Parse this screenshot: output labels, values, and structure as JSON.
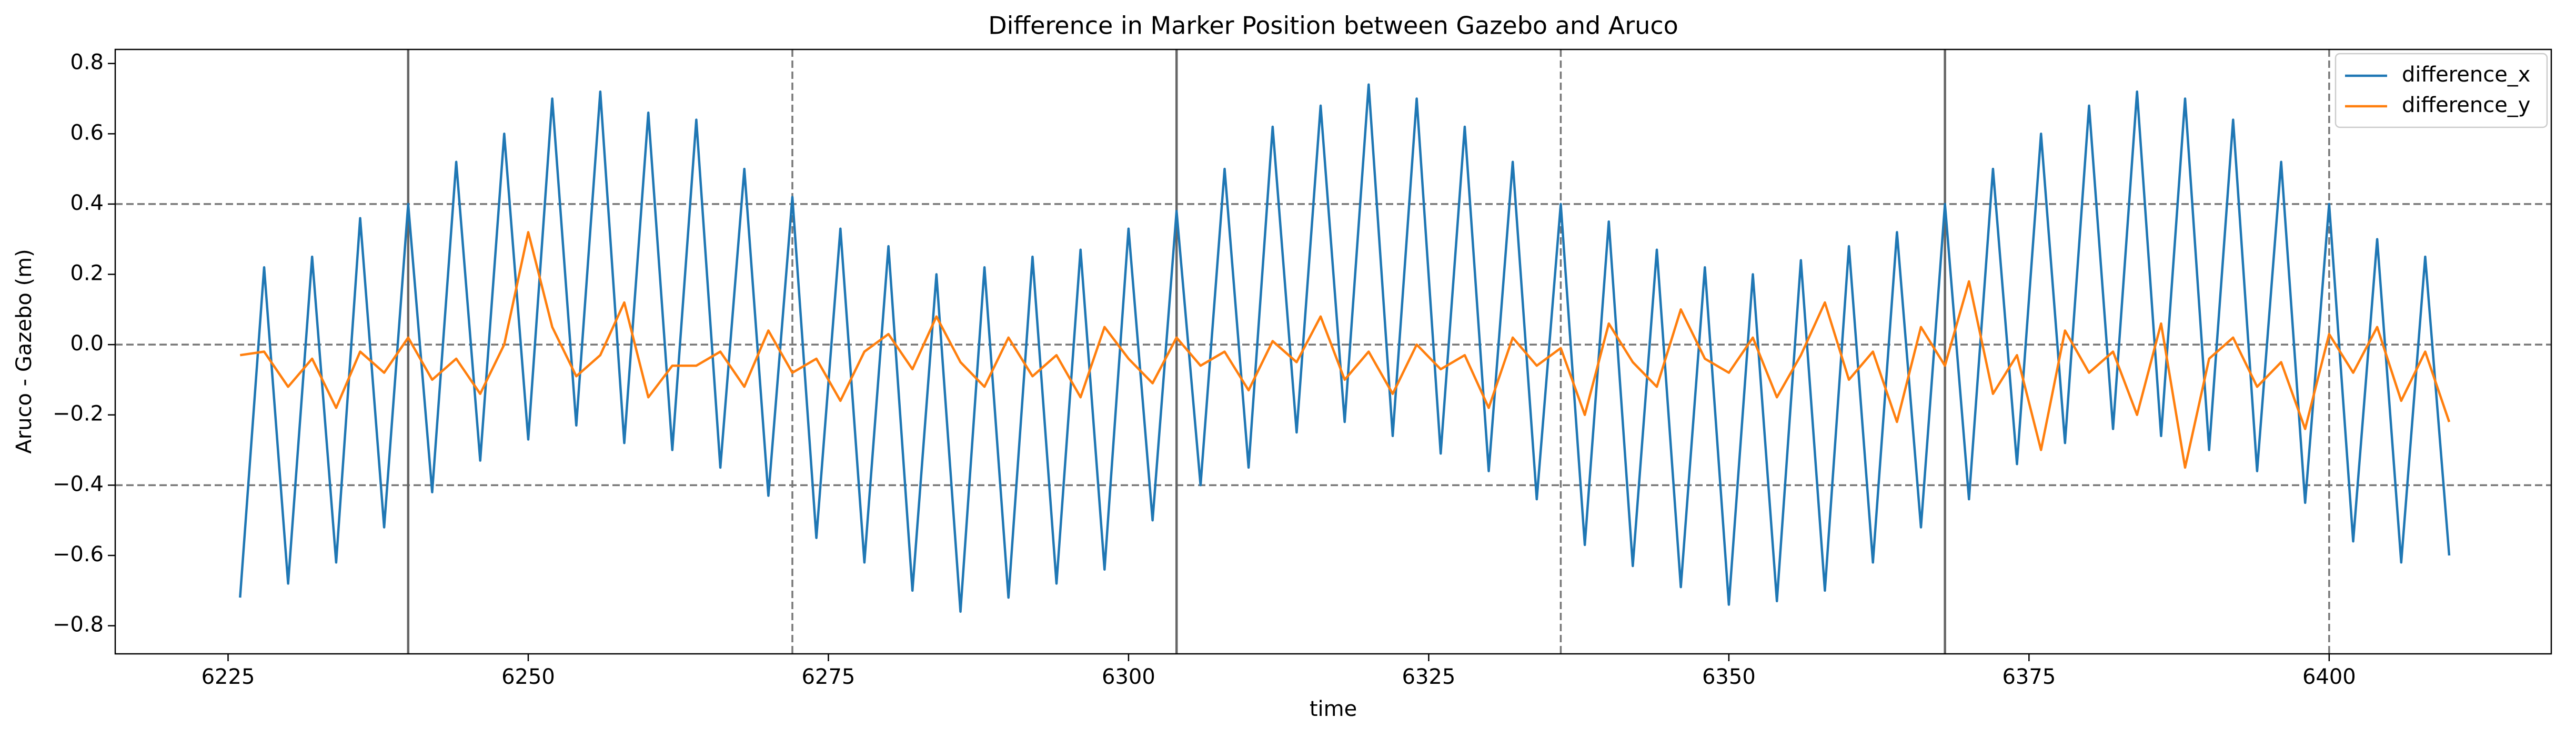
{
  "chart_data": {
    "type": "line",
    "title": "Difference in Marker Position between Gazebo and Aruco",
    "x_label": "time",
    "y_label": "Aruco - Gazebo (m)",
    "x": [
      6226,
      6228,
      6230,
      6232,
      6234,
      6236,
      6238,
      6240,
      6242,
      6244,
      6246,
      6248,
      6250,
      6252,
      6254,
      6256,
      6258,
      6260,
      6262,
      6264,
      6266,
      6268,
      6270,
      6272,
      6274,
      6276,
      6278,
      6280,
      6282,
      6284,
      6286,
      6288,
      6290,
      6292,
      6294,
      6296,
      6298,
      6300,
      6302,
      6304,
      6306,
      6308,
      6310,
      6312,
      6314,
      6316,
      6318,
      6320,
      6322,
      6324,
      6326,
      6328,
      6330,
      6332,
      6334,
      6336,
      6338,
      6340,
      6342,
      6344,
      6346,
      6348,
      6350,
      6352,
      6354,
      6356,
      6358,
      6360,
      6362,
      6364,
      6366,
      6368,
      6370,
      6372,
      6374,
      6376,
      6378,
      6380,
      6382,
      6384,
      6386,
      6388,
      6390,
      6392,
      6394,
      6396,
      6398,
      6400,
      6402,
      6404,
      6406,
      6408,
      6410
    ],
    "series": [
      {
        "name": "difference_x",
        "color": "#1f77b4",
        "values": [
          -0.72,
          0.22,
          -0.68,
          0.25,
          -0.62,
          0.36,
          -0.52,
          0.4,
          -0.42,
          0.52,
          -0.33,
          0.6,
          -0.27,
          0.7,
          -0.23,
          0.72,
          -0.28,
          0.66,
          -0.3,
          0.64,
          -0.35,
          0.5,
          -0.43,
          0.42,
          -0.55,
          0.33,
          -0.62,
          0.28,
          -0.7,
          0.2,
          -0.76,
          0.22,
          -0.72,
          0.25,
          -0.68,
          0.27,
          -0.64,
          0.33,
          -0.5,
          0.38,
          -0.4,
          0.5,
          -0.35,
          0.62,
          -0.25,
          0.68,
          -0.22,
          0.74,
          -0.26,
          0.7,
          -0.31,
          0.62,
          -0.36,
          0.52,
          -0.44,
          0.4,
          -0.57,
          0.35,
          -0.63,
          0.27,
          -0.69,
          0.22,
          -0.74,
          0.2,
          -0.73,
          0.24,
          -0.7,
          0.28,
          -0.62,
          0.32,
          -0.52,
          0.4,
          -0.44,
          0.5,
          -0.34,
          0.6,
          -0.28,
          0.68,
          -0.24,
          0.72,
          -0.26,
          0.7,
          -0.3,
          0.64,
          -0.36,
          0.52,
          -0.45,
          0.4,
          -0.56,
          0.3,
          -0.62,
          0.25,
          -0.6
        ]
      },
      {
        "name": "difference_y",
        "color": "#ff7f0e",
        "values": [
          -0.03,
          -0.02,
          -0.12,
          -0.04,
          -0.18,
          -0.02,
          -0.08,
          0.02,
          -0.1,
          -0.04,
          -0.14,
          0.0,
          0.32,
          0.05,
          -0.09,
          -0.03,
          0.12,
          -0.15,
          -0.06,
          -0.06,
          -0.02,
          -0.12,
          0.04,
          -0.08,
          -0.04,
          -0.16,
          -0.02,
          0.03,
          -0.07,
          0.08,
          -0.05,
          -0.12,
          0.02,
          -0.09,
          -0.03,
          -0.15,
          0.05,
          -0.04,
          -0.11,
          0.02,
          -0.06,
          -0.02,
          -0.13,
          0.01,
          -0.05,
          0.08,
          -0.1,
          -0.02,
          -0.14,
          0.0,
          -0.07,
          -0.03,
          -0.18,
          0.02,
          -0.06,
          -0.01,
          -0.2,
          0.06,
          -0.05,
          -0.12,
          0.1,
          -0.04,
          -0.08,
          0.02,
          -0.15,
          -0.03,
          0.12,
          -0.1,
          -0.02,
          -0.22,
          0.05,
          -0.06,
          0.18,
          -0.14,
          -0.03,
          -0.3,
          0.04,
          -0.08,
          -0.02,
          -0.2,
          0.06,
          -0.35,
          -0.04,
          0.02,
          -0.12,
          -0.05,
          -0.24,
          0.03,
          -0.08,
          0.05,
          -0.16,
          -0.02,
          -0.22
        ]
      }
    ],
    "xlim": [
      6215.6,
      6418.5
    ],
    "ylim": [
      -0.88,
      0.84
    ],
    "xticks": [
      6225,
      6250,
      6275,
      6300,
      6325,
      6350,
      6375,
      6400
    ],
    "yticks": [
      {
        "value": -0.8,
        "label": "−0.8"
      },
      {
        "value": -0.6,
        "label": "−0.6"
      },
      {
        "value": -0.4,
        "label": "−0.4"
      },
      {
        "value": -0.2,
        "label": "−0.2"
      },
      {
        "value": 0,
        "label": "0.0"
      },
      0.2,
      0.4,
      0.6,
      0.8
    ],
    "reference_lines": {
      "y_dashed": [
        -0.4,
        0,
        0.4
      ],
      "x_solid": [
        6240,
        6304,
        6368
      ],
      "x_dashed": [
        6272,
        6336,
        6400
      ]
    },
    "legend": "upper right"
  }
}
